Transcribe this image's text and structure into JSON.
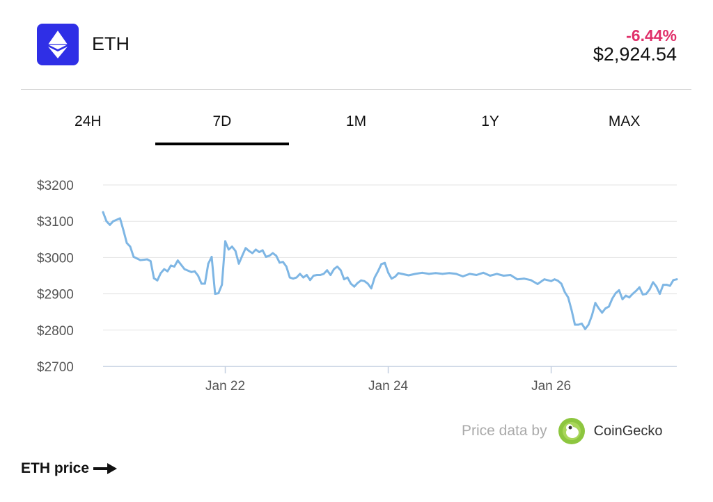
{
  "asset": {
    "symbol": "ETH",
    "change": "-6.44%",
    "price": "$2,924.54",
    "icon": "ethereum-icon",
    "icon_bg": "#2f2fe6",
    "change_color": "#e0306a"
  },
  "tabs": [
    {
      "label": "24H",
      "active": false
    },
    {
      "label": "7D",
      "active": true
    },
    {
      "label": "1M",
      "active": false
    },
    {
      "label": "1Y",
      "active": false
    },
    {
      "label": "MAX",
      "active": false
    }
  ],
  "chart_data": {
    "type": "line",
    "title": "",
    "xlabel": "",
    "ylabel": "",
    "ylim": [
      2700,
      3200
    ],
    "yticks": [
      3200,
      3100,
      3000,
      2900,
      2800,
      2700
    ],
    "ytick_labels": [
      "$3200",
      "$3100",
      "$3000",
      "$2900",
      "$2800",
      "$2700"
    ],
    "xlim": [
      "2022-01-20T12:00",
      "2022-01-27T13:00"
    ],
    "xticks": [
      "2022-01-22T00:00",
      "2022-01-24T00:00",
      "2022-01-26T00:00"
    ],
    "xtick_labels": [
      "Jan 22",
      "Jan 24",
      "Jan 26"
    ],
    "grid": true,
    "line_color": "#7eb6e4",
    "series": [
      {
        "name": "",
        "points": [
          [
            "2022-01-20T12:00",
            3125
          ],
          [
            "2022-01-20T13:00",
            3100
          ],
          [
            "2022-01-20T14:00",
            3090
          ],
          [
            "2022-01-20T15:00",
            3100
          ],
          [
            "2022-01-20T17:00",
            3108
          ],
          [
            "2022-01-20T18:00",
            3075
          ],
          [
            "2022-01-20T19:00",
            3040
          ],
          [
            "2022-01-20T20:00",
            3030
          ],
          [
            "2022-01-20T21:00",
            3002
          ],
          [
            "2022-01-20T23:00",
            2993
          ],
          [
            "2022-01-21T01:00",
            2995
          ],
          [
            "2022-01-21T02:00",
            2990
          ],
          [
            "2022-01-21T03:00",
            2943
          ],
          [
            "2022-01-21T04:00",
            2937
          ],
          [
            "2022-01-21T05:00",
            2957
          ],
          [
            "2022-01-21T06:00",
            2968
          ],
          [
            "2022-01-21T07:00",
            2962
          ],
          [
            "2022-01-21T08:00",
            2978
          ],
          [
            "2022-01-21T09:00",
            2975
          ],
          [
            "2022-01-21T10:00",
            2992
          ],
          [
            "2022-01-21T11:00",
            2980
          ],
          [
            "2022-01-21T12:00",
            2968
          ],
          [
            "2022-01-21T14:00",
            2960
          ],
          [
            "2022-01-21T15:00",
            2962
          ],
          [
            "2022-01-21T16:00",
            2950
          ],
          [
            "2022-01-21T17:00",
            2928
          ],
          [
            "2022-01-21T18:00",
            2928
          ],
          [
            "2022-01-21T19:00",
            2983
          ],
          [
            "2022-01-21T20:00",
            3002
          ],
          [
            "2022-01-21T21:00",
            2900
          ],
          [
            "2022-01-21T22:00",
            2902
          ],
          [
            "2022-01-21T23:00",
            2925
          ],
          [
            "2022-01-22T00:00",
            3045
          ],
          [
            "2022-01-22T01:00",
            3022
          ],
          [
            "2022-01-22T02:00",
            3030
          ],
          [
            "2022-01-22T03:00",
            3018
          ],
          [
            "2022-01-22T04:00",
            2983
          ],
          [
            "2022-01-22T05:00",
            3005
          ],
          [
            "2022-01-22T06:00",
            3026
          ],
          [
            "2022-01-22T07:00",
            3018
          ],
          [
            "2022-01-22T08:00",
            3012
          ],
          [
            "2022-01-22T09:00",
            3022
          ],
          [
            "2022-01-22T10:00",
            3015
          ],
          [
            "2022-01-22T11:00",
            3020
          ],
          [
            "2022-01-22T12:00",
            3002
          ],
          [
            "2022-01-22T13:00",
            3005
          ],
          [
            "2022-01-22T14:00",
            3012
          ],
          [
            "2022-01-22T15:00",
            3005
          ],
          [
            "2022-01-22T16:00",
            2986
          ],
          [
            "2022-01-22T17:00",
            2988
          ],
          [
            "2022-01-22T18:00",
            2975
          ],
          [
            "2022-01-22T19:00",
            2945
          ],
          [
            "2022-01-22T20:00",
            2942
          ],
          [
            "2022-01-22T21:00",
            2945
          ],
          [
            "2022-01-22T22:00",
            2955
          ],
          [
            "2022-01-22T23:00",
            2945
          ],
          [
            "2022-01-23T00:00",
            2952
          ],
          [
            "2022-01-23T01:00",
            2938
          ],
          [
            "2022-01-23T02:00",
            2950
          ],
          [
            "2022-01-23T03:00",
            2952
          ],
          [
            "2022-01-23T04:00",
            2952
          ],
          [
            "2022-01-23T05:00",
            2955
          ],
          [
            "2022-01-23T06:00",
            2965
          ],
          [
            "2022-01-23T07:00",
            2952
          ],
          [
            "2022-01-23T08:00",
            2968
          ],
          [
            "2022-01-23T09:00",
            2975
          ],
          [
            "2022-01-23T10:00",
            2965
          ],
          [
            "2022-01-23T11:00",
            2940
          ],
          [
            "2022-01-23T12:00",
            2945
          ],
          [
            "2022-01-23T13:00",
            2928
          ],
          [
            "2022-01-23T14:00",
            2920
          ],
          [
            "2022-01-23T15:00",
            2930
          ],
          [
            "2022-01-23T16:00",
            2937
          ],
          [
            "2022-01-23T17:00",
            2935
          ],
          [
            "2022-01-23T18:00",
            2928
          ],
          [
            "2022-01-23T19:00",
            2915
          ],
          [
            "2022-01-23T20:00",
            2945
          ],
          [
            "2022-01-23T21:00",
            2962
          ],
          [
            "2022-01-23T22:00",
            2982
          ],
          [
            "2022-01-23T23:00",
            2985
          ],
          [
            "2022-01-24T00:00",
            2958
          ],
          [
            "2022-01-24T01:00",
            2942
          ],
          [
            "2022-01-24T02:00",
            2947
          ],
          [
            "2022-01-24T03:00",
            2957
          ],
          [
            "2022-01-24T04:00",
            2955
          ],
          [
            "2022-01-24T06:00",
            2951
          ],
          [
            "2022-01-24T08:00",
            2955
          ],
          [
            "2022-01-24T10:00",
            2958
          ],
          [
            "2022-01-24T12:00",
            2955
          ],
          [
            "2022-01-24T14:00",
            2957
          ],
          [
            "2022-01-24T16:00",
            2955
          ],
          [
            "2022-01-24T18:00",
            2957
          ],
          [
            "2022-01-24T20:00",
            2955
          ],
          [
            "2022-01-24T22:00",
            2948
          ],
          [
            "2022-01-25T00:00",
            2955
          ],
          [
            "2022-01-25T02:00",
            2952
          ],
          [
            "2022-01-25T04:00",
            2958
          ],
          [
            "2022-01-25T06:00",
            2950
          ],
          [
            "2022-01-25T08:00",
            2955
          ],
          [
            "2022-01-25T10:00",
            2950
          ],
          [
            "2022-01-25T12:00",
            2952
          ],
          [
            "2022-01-25T14:00",
            2940
          ],
          [
            "2022-01-25T16:00",
            2942
          ],
          [
            "2022-01-25T18:00",
            2938
          ],
          [
            "2022-01-25T20:00",
            2927
          ],
          [
            "2022-01-25T22:00",
            2940
          ],
          [
            "2022-01-26T00:00",
            2935
          ],
          [
            "2022-01-26T01:00",
            2940
          ],
          [
            "2022-01-26T02:00",
            2936
          ],
          [
            "2022-01-26T03:00",
            2928
          ],
          [
            "2022-01-26T04:00",
            2905
          ],
          [
            "2022-01-26T05:00",
            2890
          ],
          [
            "2022-01-26T06:00",
            2855
          ],
          [
            "2022-01-26T07:00",
            2815
          ],
          [
            "2022-01-26T08:00",
            2815
          ],
          [
            "2022-01-26T09:00",
            2818
          ],
          [
            "2022-01-26T10:00",
            2803
          ],
          [
            "2022-01-26T11:00",
            2815
          ],
          [
            "2022-01-26T12:00",
            2840
          ],
          [
            "2022-01-26T13:00",
            2875
          ],
          [
            "2022-01-26T14:00",
            2860
          ],
          [
            "2022-01-26T15:00",
            2848
          ],
          [
            "2022-01-26T16:00",
            2860
          ],
          [
            "2022-01-26T17:00",
            2865
          ],
          [
            "2022-01-26T18:00",
            2887
          ],
          [
            "2022-01-26T19:00",
            2902
          ],
          [
            "2022-01-26T20:00",
            2910
          ],
          [
            "2022-01-26T21:00",
            2885
          ],
          [
            "2022-01-26T22:00",
            2895
          ],
          [
            "2022-01-26T23:00",
            2890
          ],
          [
            "2022-01-27T00:00",
            2900
          ],
          [
            "2022-01-27T01:00",
            2908
          ],
          [
            "2022-01-27T02:00",
            2918
          ],
          [
            "2022-01-27T03:00",
            2898
          ],
          [
            "2022-01-27T04:00",
            2900
          ],
          [
            "2022-01-27T05:00",
            2912
          ],
          [
            "2022-01-27T06:00",
            2932
          ],
          [
            "2022-01-27T07:00",
            2920
          ],
          [
            "2022-01-27T08:00",
            2900
          ],
          [
            "2022-01-27T09:00",
            2925
          ],
          [
            "2022-01-27T10:00",
            2925
          ],
          [
            "2022-01-27T11:00",
            2922
          ],
          [
            "2022-01-27T12:00",
            2938
          ],
          [
            "2022-01-27T13:00",
            2940
          ]
        ]
      }
    ]
  },
  "footer": {
    "price_data_by": "Price data by",
    "provider": "CoinGecko",
    "provider_icon": "gecko-logo-icon"
  },
  "cta": {
    "label": "ETH price",
    "icon": "arrow-right-icon"
  }
}
